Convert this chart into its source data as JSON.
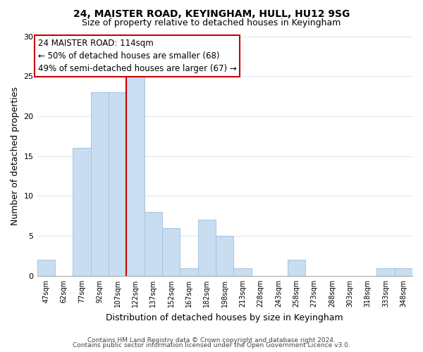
{
  "title1": "24, MAISTER ROAD, KEYINGHAM, HULL, HU12 9SG",
  "title2": "Size of property relative to detached houses in Keyingham",
  "xlabel": "Distribution of detached houses by size in Keyingham",
  "ylabel": "Number of detached properties",
  "bar_color": "#c8ddf0",
  "bar_edge_color": "#a8c4e0",
  "bin_labels": [
    "47sqm",
    "62sqm",
    "77sqm",
    "92sqm",
    "107sqm",
    "122sqm",
    "137sqm",
    "152sqm",
    "167sqm",
    "182sqm",
    "198sqm",
    "213sqm",
    "228sqm",
    "243sqm",
    "258sqm",
    "273sqm",
    "288sqm",
    "303sqm",
    "318sqm",
    "333sqm",
    "348sqm"
  ],
  "bin_values": [
    2,
    0,
    16,
    23,
    23,
    25,
    8,
    6,
    1,
    7,
    5,
    1,
    0,
    0,
    2,
    0,
    0,
    0,
    0,
    1,
    1
  ],
  "ylim": [
    0,
    30
  ],
  "yticks": [
    0,
    5,
    10,
    15,
    20,
    25,
    30
  ],
  "marker_color": "#cc0000",
  "annotation_title": "24 MAISTER ROAD: 114sqm",
  "annotation_line1": "← 50% of detached houses are smaller (68)",
  "annotation_line2": "49% of semi-detached houses are larger (67) →",
  "annotation_box_edge": "#cc0000",
  "footer1": "Contains HM Land Registry data © Crown copyright and database right 2024.",
  "footer2": "Contains public sector information licensed under the Open Government Licence v3.0.",
  "background_color": "#ffffff",
  "grid_color": "#dce8f4"
}
